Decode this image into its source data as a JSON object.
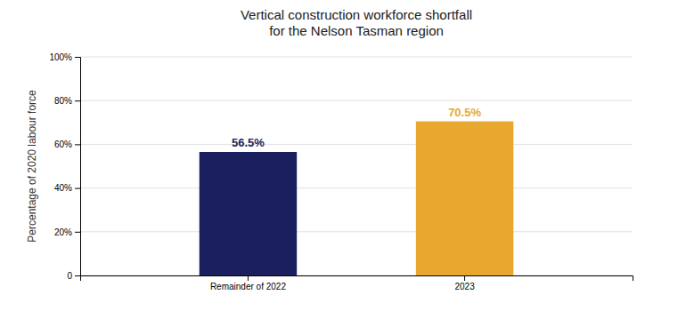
{
  "chart_data": {
    "type": "bar",
    "title": "Vertical construction workforce shortfall\nfor the Nelson Tasman region",
    "categories": [
      "Remainder of 2022",
      "2023"
    ],
    "values": [
      56.5,
      70.5
    ],
    "value_labels": [
      "56.5%",
      "70.5%"
    ],
    "data_labels": true,
    "colors": [
      "#1a1f5e",
      "#e8a830"
    ],
    "y_label": "Percentage of 2020 labour force",
    "ylim": [
      0,
      100
    ],
    "yticks": [
      0,
      {
        "value": 20,
        "label": "20%"
      },
      {
        "value": 40,
        "label": "40%"
      },
      {
        "value": 60,
        "label": "60%"
      },
      {
        "value": 80,
        "label": "80%"
      },
      {
        "value": 100,
        "label": "100%"
      }
    ],
    "grid": true
  }
}
